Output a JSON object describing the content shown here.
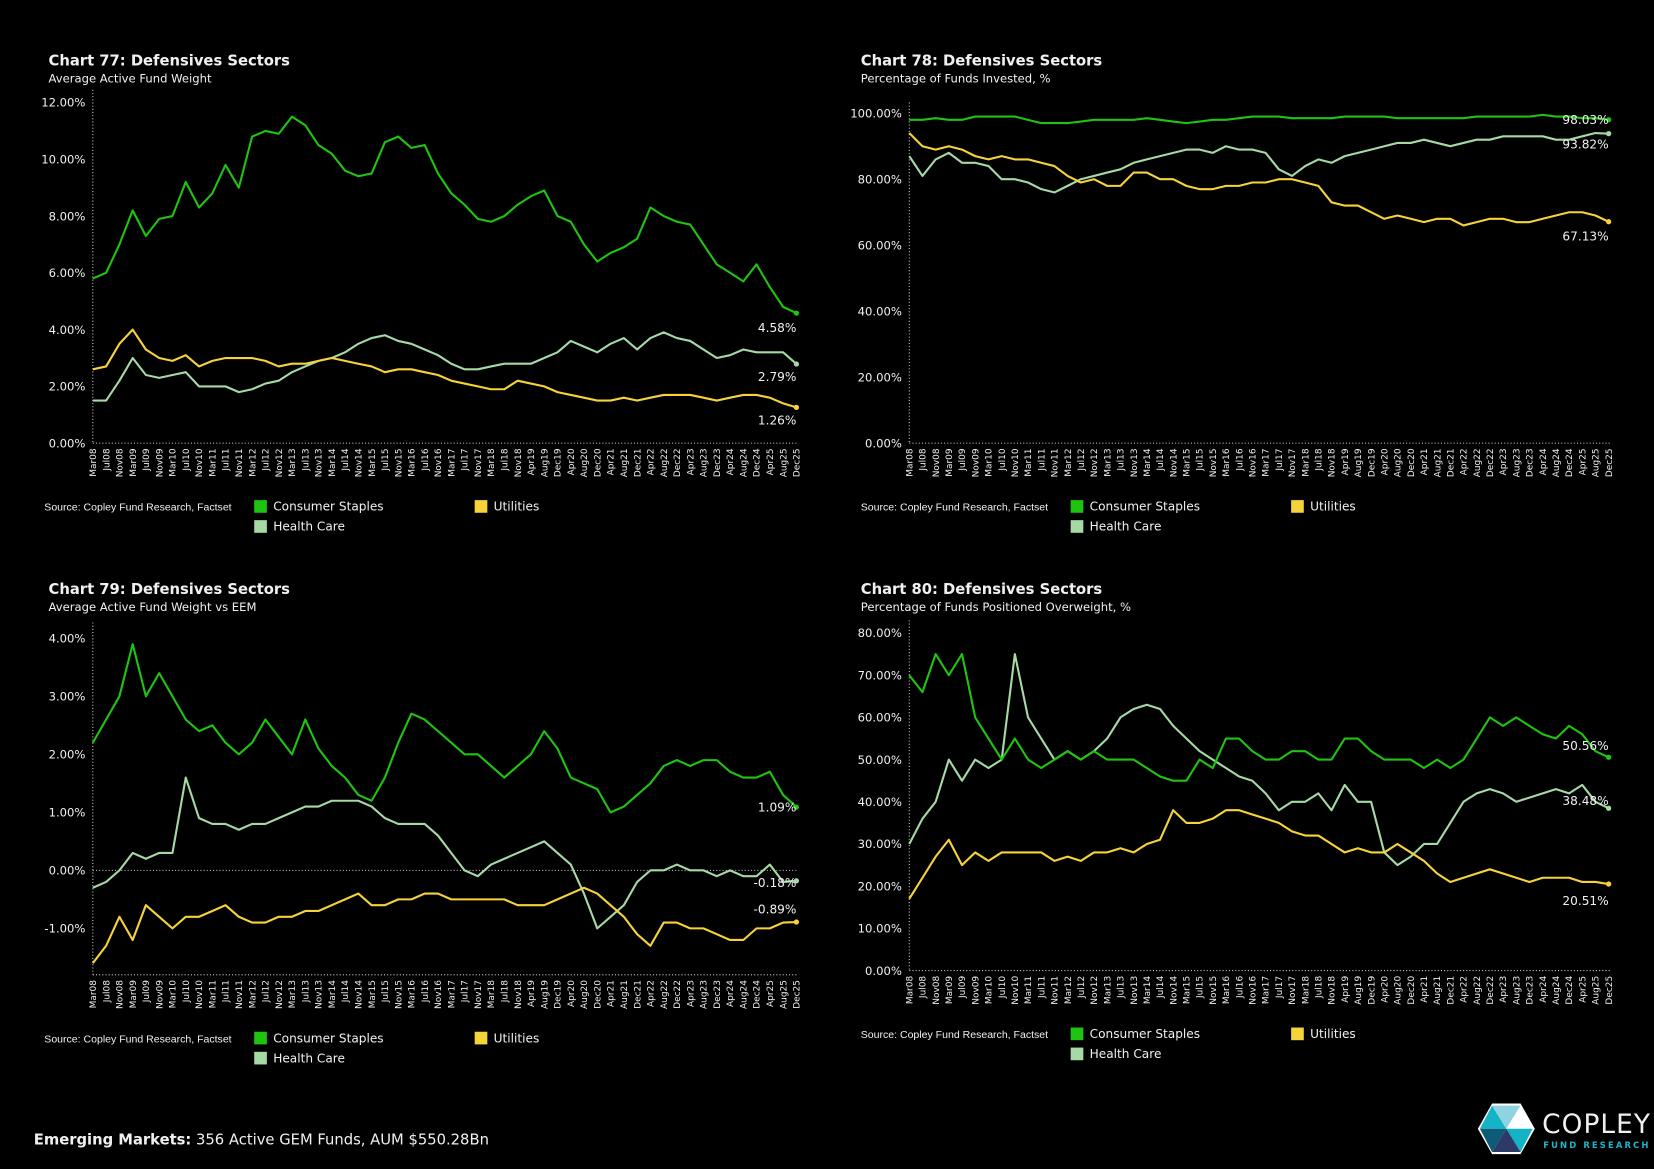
{
  "colors": {
    "consumer_staples": "#1ec40f",
    "health_care": "#a6d9a6",
    "utilities": "#f7d33a",
    "background": "#000000",
    "brand": "#1bb6c9"
  },
  "footer": {
    "bold": "Emerging Markets:",
    "text": " 356 Active GEM Funds, AUM $550.28Bn"
  },
  "logo": {
    "name": "COPLEY",
    "tagline": "FUND RESEARCH"
  },
  "chart_data": [
    {
      "type": "line",
      "title": "Chart 77:  Defensives Sectors",
      "subtitle": "Average Active Fund Weight",
      "source": "Source:  Copley Fund Research, Factset",
      "ylim": [
        0,
        12.3
      ],
      "yticks": [
        "0.00%",
        "2.00%",
        "4.00%",
        "6.00%",
        "8.00%",
        "10.00%",
        "12.00%"
      ],
      "ytick_values": [
        0,
        2,
        4,
        6,
        8,
        10,
        12
      ],
      "grid": false,
      "legend": "bottom",
      "zero_line": false,
      "x": [
        "Mar08",
        "Jul08",
        "Nov08",
        "Mar09",
        "Jul09",
        "Nov09",
        "Mar10",
        "Jul10",
        "Nov10",
        "Mar11",
        "Jul11",
        "Nov11",
        "Mar12",
        "Jul12",
        "Nov12",
        "Mar13",
        "Jul13",
        "Nov13",
        "Mar14",
        "Jul14",
        "Nov14",
        "Mar15",
        "Jul15",
        "Nov15",
        "Mar16",
        "Jul16",
        "Nov16",
        "Mar17",
        "Jul17",
        "Nov17",
        "Mar18",
        "Jul18",
        "Nov18",
        "Apr19",
        "Aug19",
        "Dec19",
        "Apr20",
        "Aug20",
        "Dec20",
        "Apr21",
        "Aug21",
        "Dec21",
        "Apr22",
        "Aug22",
        "Dec22",
        "Apr23",
        "Aug23",
        "Dec23",
        "Apr24",
        "Aug24",
        "Dec24",
        "Apr25",
        "Aug25",
        "Dec25"
      ],
      "series": [
        {
          "name": "Consumer Staples",
          "key": "consumer_staples",
          "end_label": "4.58%",
          "values": [
            5.8,
            6.0,
            7.0,
            8.2,
            7.3,
            7.9,
            8.0,
            9.2,
            8.3,
            8.8,
            9.8,
            9.0,
            10.8,
            11.0,
            10.9,
            11.5,
            11.2,
            10.5,
            10.2,
            9.6,
            9.4,
            9.5,
            10.6,
            10.8,
            10.4,
            10.5,
            9.5,
            8.8,
            8.4,
            7.9,
            7.8,
            8.0,
            8.4,
            8.7,
            8.9,
            8.0,
            7.8,
            7.0,
            6.4,
            6.7,
            6.9,
            7.2,
            8.3,
            8.0,
            7.8,
            7.7,
            7.0,
            6.3,
            6.0,
            5.7,
            6.3,
            5.5,
            4.8,
            4.58
          ]
        },
        {
          "name": "Health Care",
          "key": "health_care",
          "end_label": "2.79%",
          "values": [
            1.5,
            1.5,
            2.2,
            3.0,
            2.4,
            2.3,
            2.4,
            2.5,
            2.0,
            2.0,
            2.0,
            1.8,
            1.9,
            2.1,
            2.2,
            2.5,
            2.7,
            2.9,
            3.0,
            3.2,
            3.5,
            3.7,
            3.8,
            3.6,
            3.5,
            3.3,
            3.1,
            2.8,
            2.6,
            2.6,
            2.7,
            2.8,
            2.8,
            2.8,
            3.0,
            3.2,
            3.6,
            3.4,
            3.2,
            3.5,
            3.7,
            3.3,
            3.7,
            3.9,
            3.7,
            3.6,
            3.3,
            3.0,
            3.1,
            3.3,
            3.2,
            3.2,
            3.2,
            2.79
          ]
        },
        {
          "name": "Utilities",
          "key": "utilities",
          "end_label": "1.26%",
          "values": [
            2.6,
            2.7,
            3.5,
            4.0,
            3.3,
            3.0,
            2.9,
            3.1,
            2.7,
            2.9,
            3.0,
            3.0,
            3.0,
            2.9,
            2.7,
            2.8,
            2.8,
            2.9,
            3.0,
            2.9,
            2.8,
            2.7,
            2.5,
            2.6,
            2.6,
            2.5,
            2.4,
            2.2,
            2.1,
            2.0,
            1.9,
            1.9,
            2.2,
            2.1,
            2.0,
            1.8,
            1.7,
            1.6,
            1.5,
            1.5,
            1.6,
            1.5,
            1.6,
            1.7,
            1.7,
            1.7,
            1.6,
            1.5,
            1.6,
            1.7,
            1.7,
            1.6,
            1.4,
            1.26
          ]
        }
      ]
    },
    {
      "type": "line",
      "title": "Chart 78:  Defensives Sectors",
      "subtitle": "Percentage of Funds Invested, %",
      "source": "Source:  Copley Fund Research, Factset",
      "ylim": [
        0,
        102
      ],
      "yticks": [
        "0.00%",
        "20.00%",
        "40.00%",
        "60.00%",
        "80.00%",
        "100.00%"
      ],
      "ytick_values": [
        0,
        20,
        40,
        60,
        80,
        100
      ],
      "grid": false,
      "legend": "bottom",
      "zero_line": false,
      "x": [
        "Mar08",
        "Jul08",
        "Nov08",
        "Mar09",
        "Jul09",
        "Nov09",
        "Mar10",
        "Jul10",
        "Nov10",
        "Mar11",
        "Jul11",
        "Nov11",
        "Mar12",
        "Jul12",
        "Nov12",
        "Mar13",
        "Jul13",
        "Nov13",
        "Mar14",
        "Jul14",
        "Nov14",
        "Mar15",
        "Jul15",
        "Nov15",
        "Mar16",
        "Jul16",
        "Nov16",
        "Mar17",
        "Jul17",
        "Nov17",
        "Mar18",
        "Jul18",
        "Nov18",
        "Apr19",
        "Aug19",
        "Dec19",
        "Apr20",
        "Aug20",
        "Dec20",
        "Apr21",
        "Aug21",
        "Dec21",
        "Apr22",
        "Aug22",
        "Dec22",
        "Apr23",
        "Aug23",
        "Dec23",
        "Apr24",
        "Aug24",
        "Dec24",
        "Apr25",
        "Aug25",
        "Dec25"
      ],
      "series": [
        {
          "name": "Consumer Staples",
          "key": "consumer_staples",
          "end_label": "98.03%",
          "values": [
            98,
            98,
            98.5,
            98,
            98,
            99,
            99,
            99,
            99,
            98,
            97,
            97,
            97,
            97.5,
            98,
            98,
            98,
            98,
            98.5,
            98,
            97.5,
            97,
            97.5,
            98,
            98,
            98.5,
            99,
            99,
            99,
            98.5,
            98.5,
            98.5,
            98.5,
            99,
            99,
            99,
            99,
            98.5,
            98.5,
            98.5,
            98.5,
            98.5,
            98.5,
            99,
            99,
            99,
            99,
            99,
            99.5,
            99,
            99,
            98.5,
            98.5,
            98.03
          ]
        },
        {
          "name": "Health Care",
          "key": "health_care",
          "end_label": "93.82%",
          "values": [
            87,
            81,
            86,
            88,
            85,
            85,
            84,
            80,
            80,
            79,
            77,
            76,
            78,
            80,
            81,
            82,
            83,
            85,
            86,
            87,
            88,
            89,
            89,
            88,
            90,
            89,
            89,
            88,
            83,
            81,
            84,
            86,
            85,
            87,
            88,
            89,
            90,
            91,
            91,
            92,
            91,
            90,
            91,
            92,
            92,
            93,
            93,
            93,
            93,
            92,
            92,
            93,
            94,
            93.82
          ]
        },
        {
          "name": "Utilities",
          "key": "utilities",
          "end_label": "67.13%",
          "values": [
            94,
            90,
            89,
            90,
            89,
            87,
            86,
            87,
            86,
            86,
            85,
            84,
            81,
            79,
            80,
            78,
            78,
            82,
            82,
            80,
            80,
            78,
            77,
            77,
            78,
            78,
            79,
            79,
            80,
            80,
            79,
            78,
            73,
            72,
            72,
            70,
            68,
            69,
            68,
            67,
            68,
            68,
            66,
            67,
            68,
            68,
            67,
            67,
            68,
            69,
            70,
            70,
            69,
            67.13
          ]
        }
      ]
    },
    {
      "type": "line",
      "title": "Chart 79:  Defensives Sectors",
      "subtitle": "Average Active Fund Weight vs EEM",
      "source": "Source:  Copley Fund Research, Factset",
      "ylim": [
        -1.8,
        4.2
      ],
      "yticks": [
        "-1.00%",
        "0.00%",
        "1.00%",
        "2.00%",
        "3.00%",
        "4.00%"
      ],
      "ytick_values": [
        -1,
        0,
        1,
        2,
        3,
        4
      ],
      "grid": false,
      "legend": "bottom",
      "zero_line": true,
      "x": [
        "Mar08",
        "Jul08",
        "Nov08",
        "Mar09",
        "Jul09",
        "Nov09",
        "Mar10",
        "Jul10",
        "Nov10",
        "Mar11",
        "Jul11",
        "Nov11",
        "Mar12",
        "Jul12",
        "Nov12",
        "Mar13",
        "Jul13",
        "Nov13",
        "Mar14",
        "Jul14",
        "Nov14",
        "Mar15",
        "Jul15",
        "Nov15",
        "Mar16",
        "Jul16",
        "Nov16",
        "Mar17",
        "Jul17",
        "Nov17",
        "Mar18",
        "Jul18",
        "Nov18",
        "Apr19",
        "Aug19",
        "Dec19",
        "Apr20",
        "Aug20",
        "Dec20",
        "Apr21",
        "Aug21",
        "Dec21",
        "Apr22",
        "Aug22",
        "Dec22",
        "Apr23",
        "Aug23",
        "Dec23",
        "Apr24",
        "Aug24",
        "Dec24",
        "Apr25",
        "Aug25",
        "Dec25"
      ],
      "series": [
        {
          "name": "Consumer Staples",
          "key": "consumer_staples",
          "end_label": "1.09%",
          "values": [
            2.2,
            2.6,
            3.0,
            3.9,
            3.0,
            3.4,
            3.0,
            2.6,
            2.4,
            2.5,
            2.2,
            2.0,
            2.2,
            2.6,
            2.3,
            2.0,
            2.6,
            2.1,
            1.8,
            1.6,
            1.3,
            1.2,
            1.6,
            2.2,
            2.7,
            2.6,
            2.4,
            2.2,
            2.0,
            2.0,
            1.8,
            1.6,
            1.8,
            2.0,
            2.4,
            2.1,
            1.6,
            1.5,
            1.4,
            1.0,
            1.1,
            1.3,
            1.5,
            1.8,
            1.9,
            1.8,
            1.9,
            1.9,
            1.7,
            1.6,
            1.6,
            1.7,
            1.3,
            1.09
          ]
        },
        {
          "name": "Health Care",
          "key": "health_care",
          "end_label": "-0.18%",
          "values": [
            -0.3,
            -0.2,
            0.0,
            0.3,
            0.2,
            0.3,
            0.3,
            1.6,
            0.9,
            0.8,
            0.8,
            0.7,
            0.8,
            0.8,
            0.9,
            1.0,
            1.1,
            1.1,
            1.2,
            1.2,
            1.2,
            1.1,
            0.9,
            0.8,
            0.8,
            0.8,
            0.6,
            0.3,
            0.0,
            -0.1,
            0.1,
            0.2,
            0.3,
            0.4,
            0.5,
            0.3,
            0.1,
            -0.4,
            -1.0,
            -0.8,
            -0.6,
            -0.2,
            0.0,
            0.0,
            0.1,
            0.0,
            0.0,
            -0.1,
            0.0,
            -0.1,
            -0.1,
            0.1,
            -0.2,
            -0.18
          ]
        },
        {
          "name": "Utilities",
          "key": "utilities",
          "end_label": "-0.89%",
          "values": [
            -1.6,
            -1.3,
            -0.8,
            -1.2,
            -0.6,
            -0.8,
            -1.0,
            -0.8,
            -0.8,
            -0.7,
            -0.6,
            -0.8,
            -0.9,
            -0.9,
            -0.8,
            -0.8,
            -0.7,
            -0.7,
            -0.6,
            -0.5,
            -0.4,
            -0.6,
            -0.6,
            -0.5,
            -0.5,
            -0.4,
            -0.4,
            -0.5,
            -0.5,
            -0.5,
            -0.5,
            -0.5,
            -0.6,
            -0.6,
            -0.6,
            -0.5,
            -0.4,
            -0.3,
            -0.4,
            -0.6,
            -0.8,
            -1.1,
            -1.3,
            -0.9,
            -0.9,
            -1.0,
            -1.0,
            -1.1,
            -1.2,
            -1.2,
            -1.0,
            -1.0,
            -0.9,
            -0.89
          ]
        }
      ]
    },
    {
      "type": "line",
      "title": "Chart 80:  Defensives Sectors",
      "subtitle": "Percentage of Funds Positioned Overweight, %",
      "source": "Source:  Copley Fund Research, Factset",
      "ylim": [
        0,
        82
      ],
      "yticks": [
        "0.00%",
        "10.00%",
        "20.00%",
        "30.00%",
        "40.00%",
        "50.00%",
        "60.00%",
        "70.00%",
        "80.00%"
      ],
      "ytick_values": [
        0,
        10,
        20,
        30,
        40,
        50,
        60,
        70,
        80
      ],
      "grid": false,
      "legend": "bottom",
      "zero_line": false,
      "x": [
        "Mar08",
        "Jul08",
        "Nov08",
        "Mar09",
        "Jul09",
        "Nov09",
        "Mar10",
        "Jul10",
        "Nov10",
        "Mar11",
        "Jul11",
        "Nov11",
        "Mar12",
        "Jul12",
        "Nov12",
        "Mar13",
        "Jul13",
        "Nov13",
        "Mar14",
        "Jul14",
        "Nov14",
        "Mar15",
        "Jul15",
        "Nov15",
        "Mar16",
        "Jul16",
        "Nov16",
        "Mar17",
        "Jul17",
        "Nov17",
        "Mar18",
        "Jul18",
        "Nov18",
        "Apr19",
        "Aug19",
        "Dec19",
        "Apr20",
        "Aug20",
        "Dec20",
        "Apr21",
        "Aug21",
        "Dec21",
        "Apr22",
        "Aug22",
        "Dec22",
        "Apr23",
        "Aug23",
        "Dec23",
        "Apr24",
        "Aug24",
        "Dec24",
        "Apr25",
        "Aug25",
        "Dec25"
      ],
      "series": [
        {
          "name": "Consumer Staples",
          "key": "consumer_staples",
          "end_label": "50.56%",
          "values": [
            70,
            66,
            75,
            70,
            75,
            60,
            55,
            50,
            55,
            50,
            48,
            50,
            52,
            50,
            52,
            50,
            50,
            50,
            48,
            46,
            45,
            45,
            50,
            48,
            55,
            55,
            52,
            50,
            50,
            52,
            52,
            50,
            50,
            55,
            55,
            52,
            50,
            50,
            50,
            48,
            50,
            48,
            50,
            55,
            60,
            58,
            60,
            58,
            56,
            55,
            58,
            56,
            52,
            50.56
          ]
        },
        {
          "name": "Health Care",
          "key": "health_care",
          "end_label": "38.48%",
          "values": [
            30,
            36,
            40,
            50,
            45,
            50,
            48,
            50,
            75,
            60,
            55,
            50,
            52,
            50,
            52,
            55,
            60,
            62,
            63,
            62,
            58,
            55,
            52,
            50,
            48,
            46,
            45,
            42,
            38,
            40,
            40,
            42,
            38,
            44,
            40,
            40,
            28,
            25,
            27,
            30,
            30,
            35,
            40,
            42,
            43,
            42,
            40,
            41,
            42,
            43,
            42,
            44,
            40,
            38.48
          ]
        },
        {
          "name": "Utilities",
          "key": "utilities",
          "end_label": "20.51%",
          "values": [
            17,
            22,
            27,
            31,
            25,
            28,
            26,
            28,
            28,
            28,
            28,
            26,
            27,
            26,
            28,
            28,
            29,
            28,
            30,
            31,
            38,
            35,
            35,
            36,
            38,
            38,
            37,
            36,
            35,
            33,
            32,
            32,
            30,
            28,
            29,
            28,
            28,
            30,
            28,
            26,
            23,
            21,
            22,
            23,
            24,
            23,
            22,
            21,
            22,
            22,
            22,
            21,
            21,
            20.51
          ]
        }
      ]
    }
  ]
}
